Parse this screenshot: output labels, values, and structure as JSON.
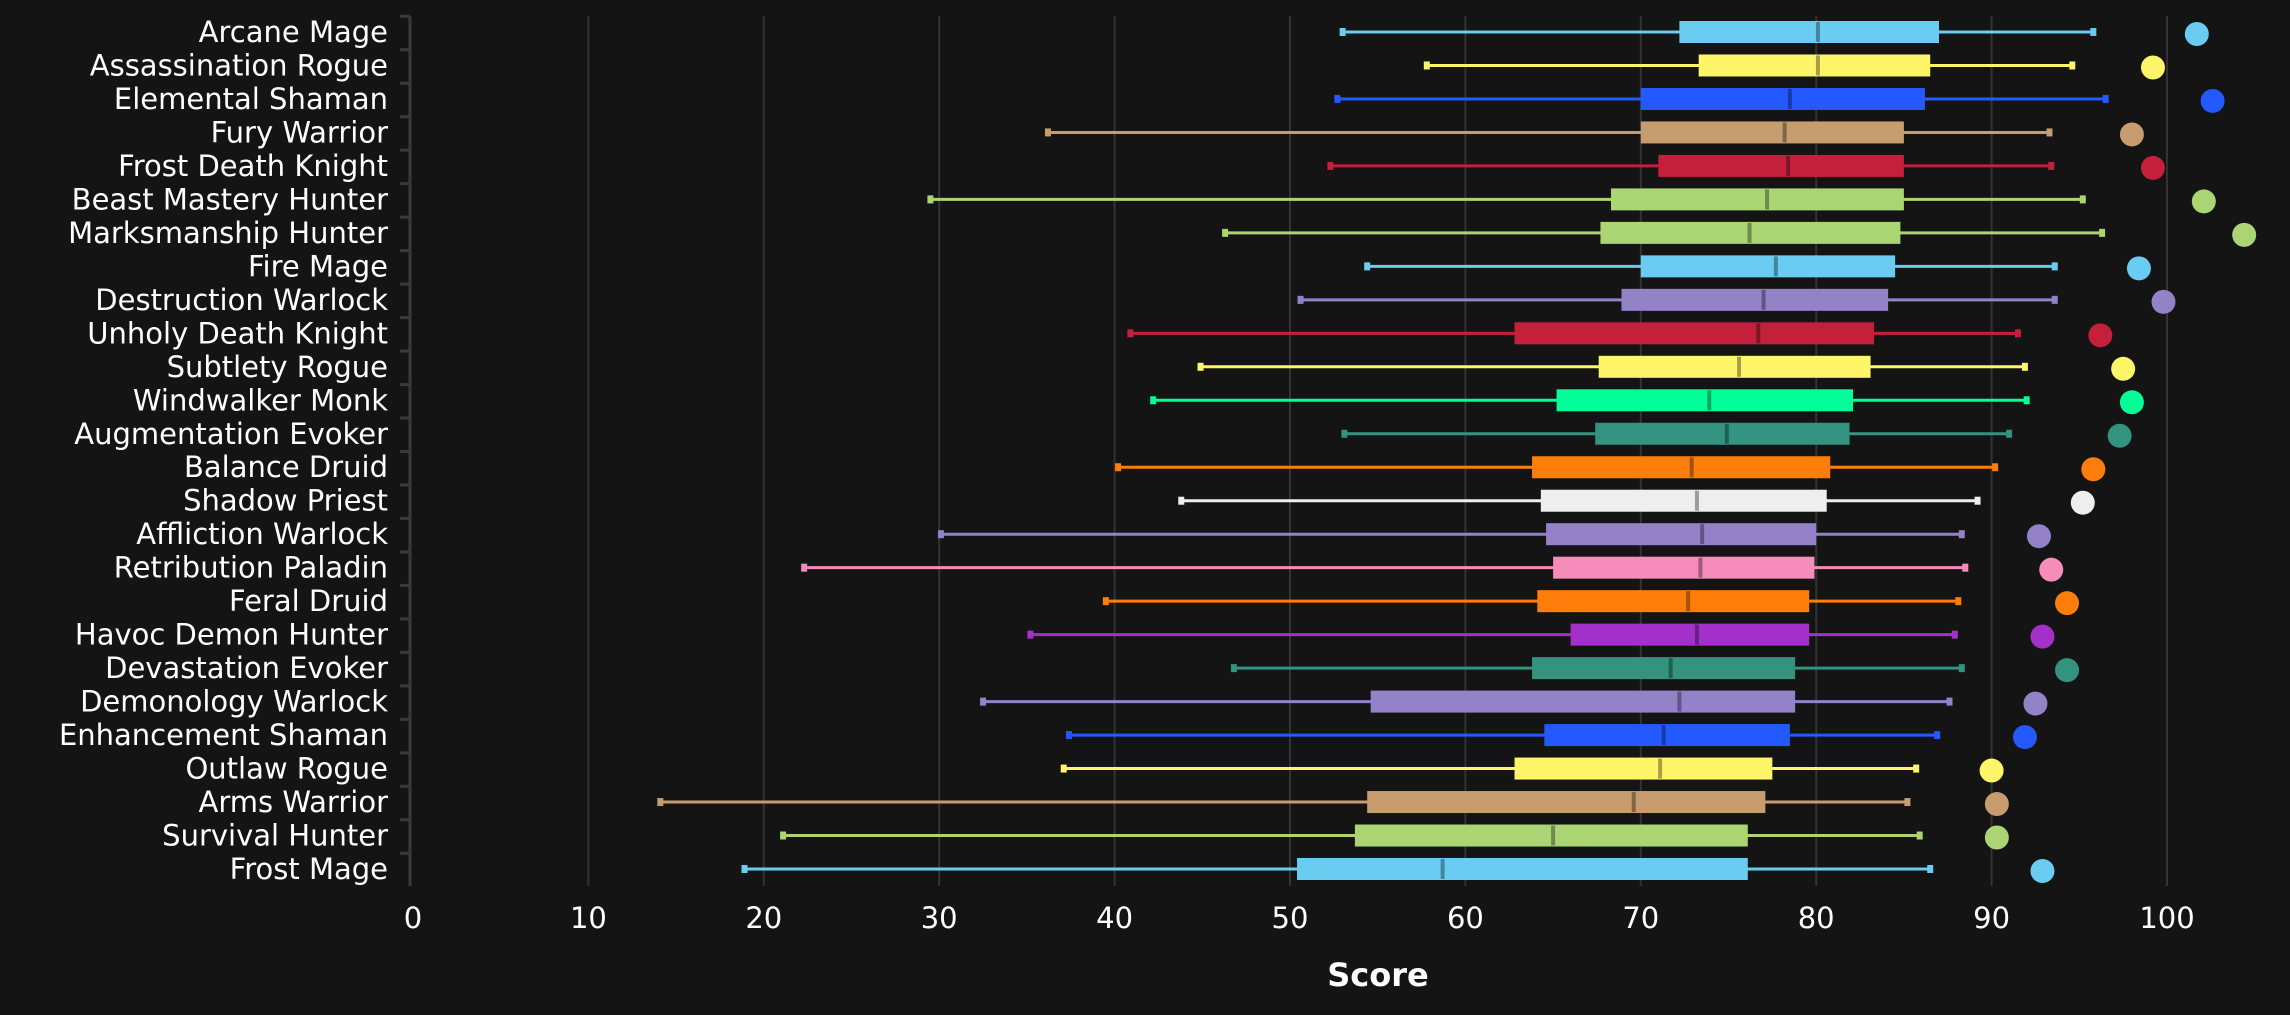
{
  "chart_data": {
    "type": "boxplot",
    "title": "",
    "xlabel": "Score",
    "ylabel": "",
    "xlim": [
      0,
      105
    ],
    "xticks": [
      0,
      10,
      20,
      30,
      40,
      50,
      60,
      70,
      80,
      90,
      100
    ],
    "grid": true,
    "legend": "none",
    "orientation": "horizontal",
    "series": [
      {
        "name": "Arcane Mage",
        "color": "#69CCF0",
        "min": 53.0,
        "q1": 72.2,
        "median": 80.1,
        "q3": 87.0,
        "max": 95.8,
        "point": 101.7
      },
      {
        "name": "Assassination Rogue",
        "color": "#FFF569",
        "min": 57.8,
        "q1": 73.3,
        "median": 80.1,
        "q3": 86.5,
        "max": 94.6,
        "point": 99.2
      },
      {
        "name": "Elemental Shaman",
        "color": "#2459FF",
        "min": 52.7,
        "q1": 70.0,
        "median": 78.5,
        "q3": 86.2,
        "max": 96.5,
        "point": 102.6
      },
      {
        "name": "Fury Warrior",
        "color": "#C79C6E",
        "min": 36.2,
        "q1": 70.0,
        "median": 78.2,
        "q3": 85.0,
        "max": 93.3,
        "point": 98.0
      },
      {
        "name": "Frost Death Knight",
        "color": "#C41F3B",
        "min": 52.3,
        "q1": 71.0,
        "median": 78.4,
        "q3": 85.0,
        "max": 93.4,
        "point": 99.2
      },
      {
        "name": "Beast Mastery Hunter",
        "color": "#ABD473",
        "min": 29.5,
        "q1": 68.3,
        "median": 77.2,
        "q3": 85.0,
        "max": 95.2,
        "point": 102.1
      },
      {
        "name": "Marksmanship Hunter",
        "color": "#ABD473",
        "min": 46.3,
        "q1": 67.7,
        "median": 76.2,
        "q3": 84.8,
        "max": 96.3,
        "point": 104.4
      },
      {
        "name": "Fire Mage",
        "color": "#69CCF0",
        "min": 54.4,
        "q1": 70.0,
        "median": 77.7,
        "q3": 84.5,
        "max": 93.6,
        "point": 98.4
      },
      {
        "name": "Destruction Warlock",
        "color": "#9482C9",
        "min": 50.6,
        "q1": 68.9,
        "median": 77.0,
        "q3": 84.1,
        "max": 93.6,
        "point": 99.8
      },
      {
        "name": "Unholy Death Knight",
        "color": "#C41F3B",
        "min": 40.9,
        "q1": 62.8,
        "median": 76.7,
        "q3": 83.3,
        "max": 91.5,
        "point": 96.2
      },
      {
        "name": "Subtlety Rogue",
        "color": "#FFF569",
        "min": 44.9,
        "q1": 67.6,
        "median": 75.6,
        "q3": 83.1,
        "max": 91.9,
        "point": 97.5
      },
      {
        "name": "Windwalker Monk",
        "color": "#00FF96",
        "min": 42.2,
        "q1": 65.2,
        "median": 73.9,
        "q3": 82.1,
        "max": 92.0,
        "point": 98.0
      },
      {
        "name": "Augmentation Evoker",
        "color": "#33937F",
        "min": 53.1,
        "q1": 67.4,
        "median": 74.9,
        "q3": 81.9,
        "max": 91.0,
        "point": 97.3
      },
      {
        "name": "Balance Druid",
        "color": "#FF7D0A",
        "min": 40.2,
        "q1": 63.8,
        "median": 72.9,
        "q3": 80.8,
        "max": 90.2,
        "point": 95.8
      },
      {
        "name": "Shadow Priest",
        "color": "#EEEEEE",
        "min": 43.8,
        "q1": 64.3,
        "median": 73.2,
        "q3": 80.6,
        "max": 89.2,
        "point": 95.2
      },
      {
        "name": "Affliction Warlock",
        "color": "#9482C9",
        "min": 30.1,
        "q1": 64.6,
        "median": 73.5,
        "q3": 80.0,
        "max": 88.3,
        "point": 92.7
      },
      {
        "name": "Retribution Paladin",
        "color": "#F58CBA",
        "min": 22.3,
        "q1": 65.0,
        "median": 73.4,
        "q3": 79.9,
        "max": 88.5,
        "point": 93.4
      },
      {
        "name": "Feral Druid",
        "color": "#FF7D0A",
        "min": 39.5,
        "q1": 64.1,
        "median": 72.7,
        "q3": 79.6,
        "max": 88.1,
        "point": 94.3
      },
      {
        "name": "Havoc Demon Hunter",
        "color": "#A330C9",
        "min": 35.2,
        "q1": 66.0,
        "median": 73.2,
        "q3": 79.6,
        "max": 87.9,
        "point": 92.9
      },
      {
        "name": "Devastation Evoker",
        "color": "#33937F",
        "min": 46.8,
        "q1": 63.8,
        "median": 71.7,
        "q3": 78.8,
        "max": 88.3,
        "point": 94.3
      },
      {
        "name": "Demonology Warlock",
        "color": "#9482C9",
        "min": 32.5,
        "q1": 54.6,
        "median": 72.2,
        "q3": 78.8,
        "max": 87.6,
        "point": 92.5
      },
      {
        "name": "Enhancement Shaman",
        "color": "#2459FF",
        "min": 37.4,
        "q1": 64.5,
        "median": 71.3,
        "q3": 78.5,
        "max": 86.9,
        "point": 91.9
      },
      {
        "name": "Outlaw Rogue",
        "color": "#FFF569",
        "min": 37.1,
        "q1": 62.8,
        "median": 71.1,
        "q3": 77.5,
        "max": 85.7,
        "point": 90.0
      },
      {
        "name": "Arms Warrior",
        "color": "#C79C6E",
        "min": 14.1,
        "q1": 54.4,
        "median": 69.6,
        "q3": 77.1,
        "max": 85.2,
        "point": 90.3
      },
      {
        "name": "Survival Hunter",
        "color": "#ABD473",
        "min": 21.1,
        "q1": 53.7,
        "median": 65.0,
        "q3": 76.1,
        "max": 85.9,
        "point": 90.3
      },
      {
        "name": "Frost Mage",
        "color": "#69CCF0",
        "min": 18.9,
        "q1": 50.4,
        "median": 58.7,
        "q3": 76.1,
        "max": 86.5,
        "point": 92.9
      }
    ]
  }
}
